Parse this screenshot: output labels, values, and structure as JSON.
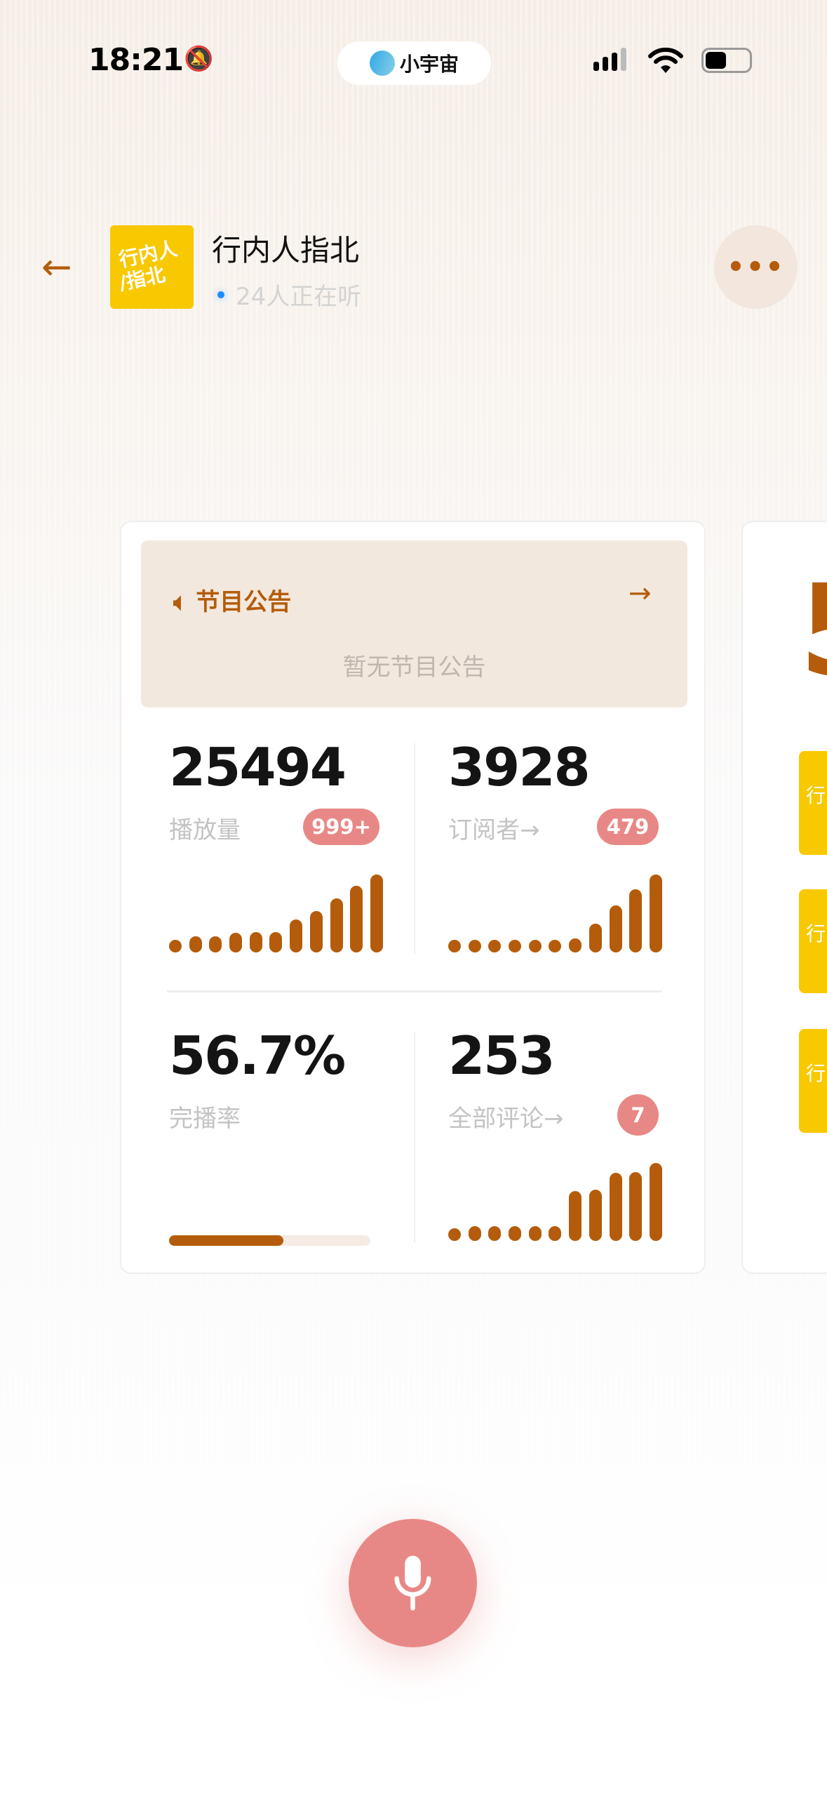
{
  "status_bar": {
    "time": "18:21",
    "app_pill": "小宇宙",
    "icons": [
      "bell-slash-icon",
      "signal-icon",
      "wifi-icon",
      "battery-icon"
    ]
  },
  "header": {
    "title": "行内人指北",
    "listeners": "24人正在听",
    "logo_text": [
      "行内人",
      "/指北"
    ]
  },
  "announcement": {
    "title": "节目公告",
    "empty": "暂无节目公告"
  },
  "stats": {
    "plays": {
      "value": "25494",
      "label": "播放量",
      "badge": "999+",
      "bars": [
        0.13,
        0.21,
        0.21,
        0.25,
        0.26,
        0.26,
        0.42,
        0.53,
        0.69,
        0.86,
        1.0
      ]
    },
    "subscribers": {
      "value": "3928",
      "label": "订阅者→",
      "badge": "479",
      "bars": [
        0.13,
        0.15,
        0.15,
        0.15,
        0.15,
        0.15,
        0.18,
        0.37,
        0.6,
        0.81,
        1.0
      ]
    },
    "completion": {
      "value": "56.7%",
      "label": "完播率",
      "progress": 0.567
    },
    "comments": {
      "value": "253",
      "label": "全部评论→",
      "badge": "7",
      "bars": [
        0.13,
        0.19,
        0.19,
        0.19,
        0.19,
        0.19,
        0.64,
        0.66,
        0.87,
        0.88,
        1.0
      ]
    }
  },
  "next_card": {
    "number_fragment": "5",
    "tile_text": "行"
  },
  "colors": {
    "accent": "#b45c0b",
    "badge": "#e88886",
    "logo": "#f8c800"
  }
}
